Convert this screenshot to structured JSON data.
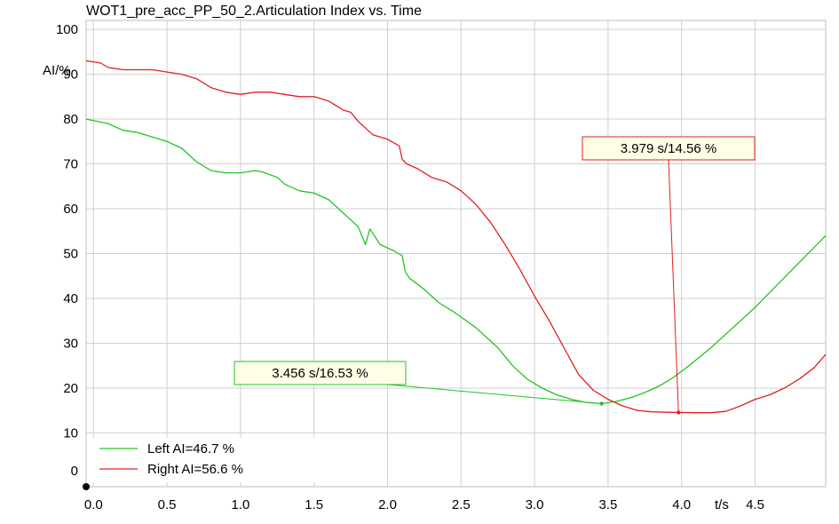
{
  "chart_data": {
    "type": "line",
    "title": "WOT1_pre_acc_PP_50_2.Articulation Index vs. Time",
    "xlabel": "t/s",
    "ylabel": "AI/%",
    "xlim": [
      -0.05,
      4.98
    ],
    "ylim": [
      -2,
      102
    ],
    "xticks": [
      "0.0",
      "0.5",
      "1.0",
      "1.5",
      "2.0",
      "2.5",
      "3.0",
      "3.5",
      "4.0",
      "4.5"
    ],
    "yticks": [
      "0",
      "10",
      "20",
      "30",
      "40",
      "50",
      "60",
      "70",
      "80",
      "90",
      "100"
    ],
    "grid": true,
    "legend_position": "bottom-left",
    "series": [
      {
        "name": "Left AI=46.7 %",
        "color": "#22c422",
        "x": [
          -0.05,
          0.1,
          0.2,
          0.3,
          0.4,
          0.5,
          0.6,
          0.7,
          0.8,
          0.9,
          1.0,
          1.1,
          1.15,
          1.25,
          1.3,
          1.4,
          1.5,
          1.6,
          1.7,
          1.8,
          1.85,
          1.88,
          1.95,
          2.05,
          2.1,
          2.12,
          2.15,
          2.25,
          2.35,
          2.45,
          2.6,
          2.75,
          2.85,
          2.95,
          3.05,
          3.15,
          3.25,
          3.35,
          3.456,
          3.55,
          3.65,
          3.75,
          3.85,
          3.95,
          4.05,
          4.2,
          4.35,
          4.5,
          4.65,
          4.8,
          4.98
        ],
        "y": [
          80,
          79,
          77.5,
          77,
          76,
          75,
          73.5,
          70.5,
          68.5,
          68,
          68,
          68.5,
          68.2,
          67,
          65.5,
          64,
          63.5,
          62,
          59,
          56,
          52,
          55.5,
          52,
          50.5,
          49.5,
          46,
          44.5,
          42,
          39,
          37,
          33.5,
          29,
          25,
          22,
          20,
          18.5,
          17.5,
          16.8,
          16.53,
          17,
          17.8,
          19,
          20.5,
          22.5,
          25,
          29,
          33.5,
          38,
          43,
          48,
          54
        ]
      },
      {
        "name": "Right AI=56.6 %",
        "color": "#e02020",
        "x": [
          -0.05,
          0.05,
          0.1,
          0.2,
          0.3,
          0.4,
          0.5,
          0.6,
          0.7,
          0.8,
          0.9,
          1.0,
          1.1,
          1.2,
          1.3,
          1.4,
          1.5,
          1.6,
          1.7,
          1.75,
          1.8,
          1.85,
          1.9,
          1.95,
          2.0,
          2.08,
          2.1,
          2.13,
          2.2,
          2.3,
          2.4,
          2.5,
          2.6,
          2.7,
          2.8,
          2.9,
          3.0,
          3.1,
          3.2,
          3.3,
          3.4,
          3.5,
          3.6,
          3.7,
          3.8,
          3.9,
          3.979,
          4.1,
          4.2,
          4.3,
          4.4,
          4.5,
          4.6,
          4.7,
          4.8,
          4.9,
          4.98
        ],
        "y": [
          93,
          92.5,
          91.5,
          91,
          91,
          91,
          90.5,
          90,
          89,
          87,
          86,
          85.5,
          86,
          86,
          85.5,
          85,
          85,
          84,
          82,
          81.5,
          79.5,
          78,
          76.5,
          76,
          75.5,
          74,
          71,
          70,
          69,
          67,
          66,
          64,
          61,
          57,
          52,
          46.5,
          40.5,
          35,
          29,
          23,
          19.5,
          17.5,
          16,
          15,
          14.7,
          14.6,
          14.56,
          14.5,
          14.5,
          14.8,
          16,
          17.5,
          18.5,
          20,
          22,
          24.5,
          27.5
        ]
      }
    ],
    "annotations": [
      {
        "text": "3.456 s/16.53 %",
        "series": 0,
        "x": 3.456,
        "y": 16.53
      },
      {
        "text": "3.979 s/14.56 %",
        "series": 1,
        "x": 3.979,
        "y": 14.56
      }
    ]
  }
}
